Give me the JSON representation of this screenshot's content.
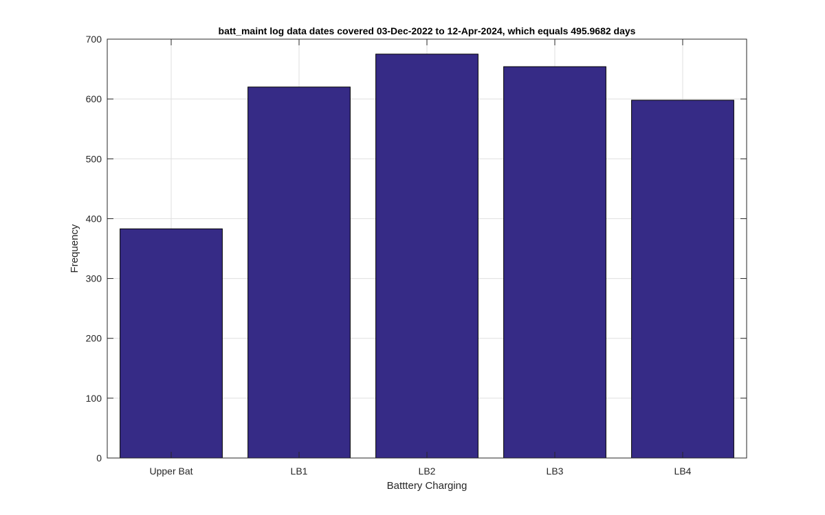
{
  "chart_data": {
    "type": "bar",
    "title": "batt_maint log data  dates covered 03-Dec-2022 to 12-Apr-2024, which equals 495.9682 days",
    "xlabel": "Batttery Charging",
    "ylabel": "Frequency",
    "categories": [
      "Upper Bat",
      "LB1",
      "LB2",
      "LB3",
      "LB4"
    ],
    "values": [
      383,
      620,
      675,
      654,
      598
    ],
    "ylim": [
      0,
      700
    ],
    "yticks": [
      "0",
      "100",
      "200",
      "300",
      "400",
      "500",
      "600",
      "700"
    ],
    "grid": true,
    "colors": {
      "bar_fill": "#362b86",
      "bar_edge": "#000000",
      "grid": "#dfdfdf",
      "axis": "#262626"
    }
  }
}
